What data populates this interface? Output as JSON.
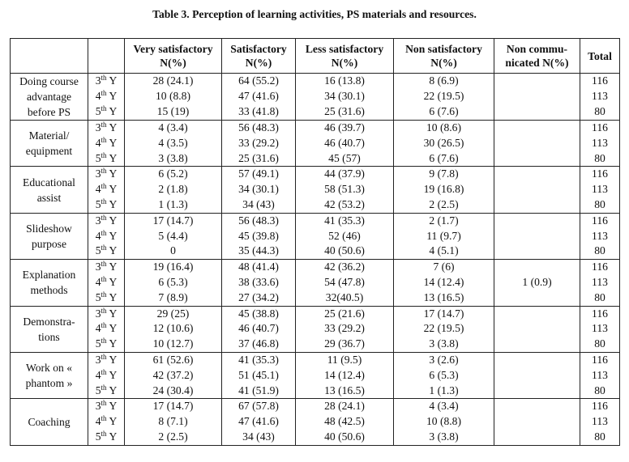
{
  "caption": "Table 3. Perception of learning activities, PS materials and resources.",
  "headers": {
    "very": "Very satisfactory N(%)",
    "sat": "Satisfactory N(%)",
    "less": "Less satisfactory N(%)",
    "non": "Non satisfactory N(%)",
    "noncomm": "Non commu- nicated N(%)",
    "total": "Total"
  },
  "years": [
    {
      "num": "3",
      "sup": "th",
      "suffix": " Y"
    },
    {
      "num": "4",
      "sup": "th",
      "suffix": " Y"
    },
    {
      "num": "5",
      "sup": "th",
      "suffix": " Y"
    }
  ],
  "groups": [
    {
      "activity": "Doing course advantage before PS",
      "very": [
        "28 (24.1)",
        "10 (8.8)",
        "15 (19)"
      ],
      "sat": [
        "64 (55.2)",
        "47 (41.6)",
        "33 (41.8)"
      ],
      "less": [
        "16 (13.8)",
        "34 (30.1)",
        "25 (31.6)"
      ],
      "non": [
        "8 (6.9)",
        "22 (19.5)",
        "6 (7.6)"
      ],
      "noncomm": "",
      "total": [
        "116",
        "113",
        "80"
      ]
    },
    {
      "activity": "Material/ equipment",
      "very": [
        "4 (3.4)",
        "4 (3.5)",
        "3 (3.8)"
      ],
      "sat": [
        "56 (48.3)",
        "33 (29.2)",
        "25 (31.6)"
      ],
      "less": [
        "46 (39.7)",
        "46 (40.7)",
        "45 (57)"
      ],
      "non": [
        "10 (8.6)",
        "30 (26.5)",
        "6 (7.6)"
      ],
      "noncomm": "",
      "total": [
        "116",
        "113",
        "80"
      ]
    },
    {
      "activity": "Educational assist",
      "very": [
        "6 (5.2)",
        "2 (1.8)",
        "1 (1.3)"
      ],
      "sat": [
        "57 (49.1)",
        "34 (30.1)",
        "34 (43)"
      ],
      "less": [
        "44 (37.9)",
        "58 (51.3)",
        "42 (53.2)"
      ],
      "non": [
        "9 (7.8)",
        "19 (16.8)",
        "2 (2.5)"
      ],
      "noncomm": "",
      "total": [
        "116",
        "113",
        "80"
      ]
    },
    {
      "activity": "Slideshow purpose",
      "very": [
        "17 (14.7)",
        "5 (4.4)",
        "0"
      ],
      "sat": [
        "56 (48.3)",
        "45 (39.8)",
        "35 (44.3)"
      ],
      "less": [
        "41 (35.3)",
        "52 (46)",
        "40 (50.6)"
      ],
      "non": [
        "2 (1.7)",
        "11 (9.7)",
        "4 (5.1)"
      ],
      "noncomm": "",
      "total": [
        "116",
        "113",
        "80"
      ]
    },
    {
      "activity": "Explanation methods",
      "very": [
        "19 (16.4)",
        "6 (5.3)",
        "7 (8.9)"
      ],
      "sat": [
        "48 (41.4)",
        "38 (33.6)",
        "27 (34.2)"
      ],
      "less": [
        "42 (36.2)",
        "54 (47.8)",
        "32(40.5)"
      ],
      "non": [
        "7 (6)",
        "14 (12.4)",
        "13 (16.5)"
      ],
      "noncomm": "1 (0.9)",
      "total": [
        "116",
        "113",
        "80"
      ]
    },
    {
      "activity": "Demonstra- tions",
      "very": [
        "29 (25)",
        "12 (10.6)",
        "10 (12.7)"
      ],
      "sat": [
        "45 (38.8)",
        "46 (40.7)",
        "37 (46.8)"
      ],
      "less": [
        "25 (21.6)",
        "33 (29.2)",
        "29 (36.7)"
      ],
      "non": [
        "17 (14.7)",
        "22 (19.5)",
        "3 (3.8)"
      ],
      "noncomm": "",
      "total": [
        "116",
        "113",
        "80"
      ]
    },
    {
      "activity": "Work on « phantom »",
      "very": [
        "61 (52.6)",
        "42 (37.2)",
        "24 (30.4)"
      ],
      "sat": [
        "41 (35.3)",
        "51 (45.1)",
        "41 (51.9)"
      ],
      "less": [
        "11 (9.5)",
        "14 (12.4)",
        "13 (16.5)"
      ],
      "non": [
        "3 (2.6)",
        "6 (5.3)",
        "1 (1.3)"
      ],
      "noncomm": "",
      "total": [
        "116",
        "113",
        "80"
      ]
    },
    {
      "activity": "Coaching",
      "very": [
        "17 (14.7)",
        "8 (7.1)",
        "2 (2.5)"
      ],
      "sat": [
        "67 (57.8)",
        "47 (41.6)",
        "34 (43)"
      ],
      "less": [
        "28 (24.1)",
        "48 (42.5)",
        "40 (50.6)"
      ],
      "non": [
        "4 (3.4)",
        "10 (8.8)",
        "3 (3.8)"
      ],
      "noncomm": "",
      "total": [
        "116",
        "113",
        "80"
      ]
    }
  ]
}
